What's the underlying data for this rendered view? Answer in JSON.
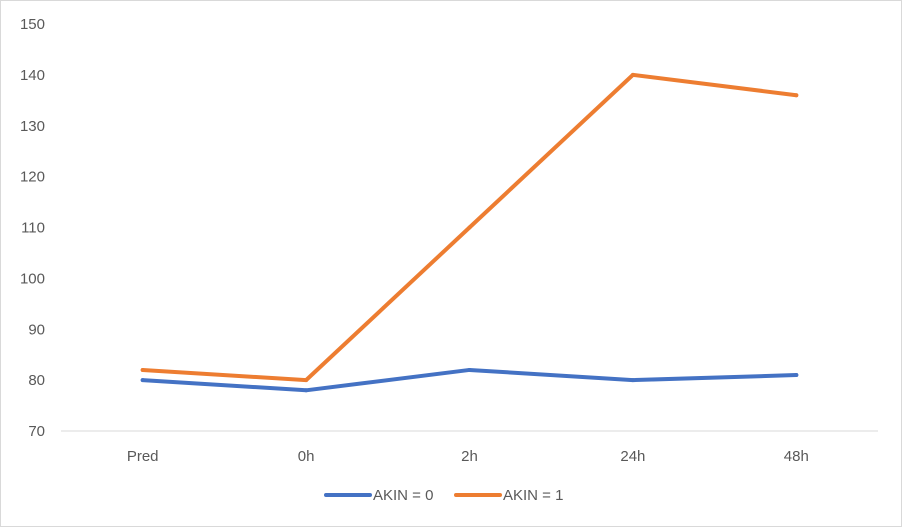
{
  "chart_data": {
    "type": "line",
    "title": "",
    "xlabel": "",
    "ylabel": "",
    "categories": [
      "Pred",
      "0h",
      "2h",
      "24h",
      "48h"
    ],
    "ylim": [
      70,
      150
    ],
    "yticks": [
      70,
      80,
      90,
      100,
      110,
      120,
      130,
      140,
      150
    ],
    "grid": false,
    "legend": "bottom",
    "series": [
      {
        "name": "AKIN = 0",
        "color": "#4472C4",
        "values": [
          80,
          78,
          82,
          80,
          81
        ]
      },
      {
        "name": "AKIN = 1",
        "color": "#ED7D31",
        "values": [
          82,
          80,
          110,
          140,
          136
        ]
      }
    ]
  }
}
